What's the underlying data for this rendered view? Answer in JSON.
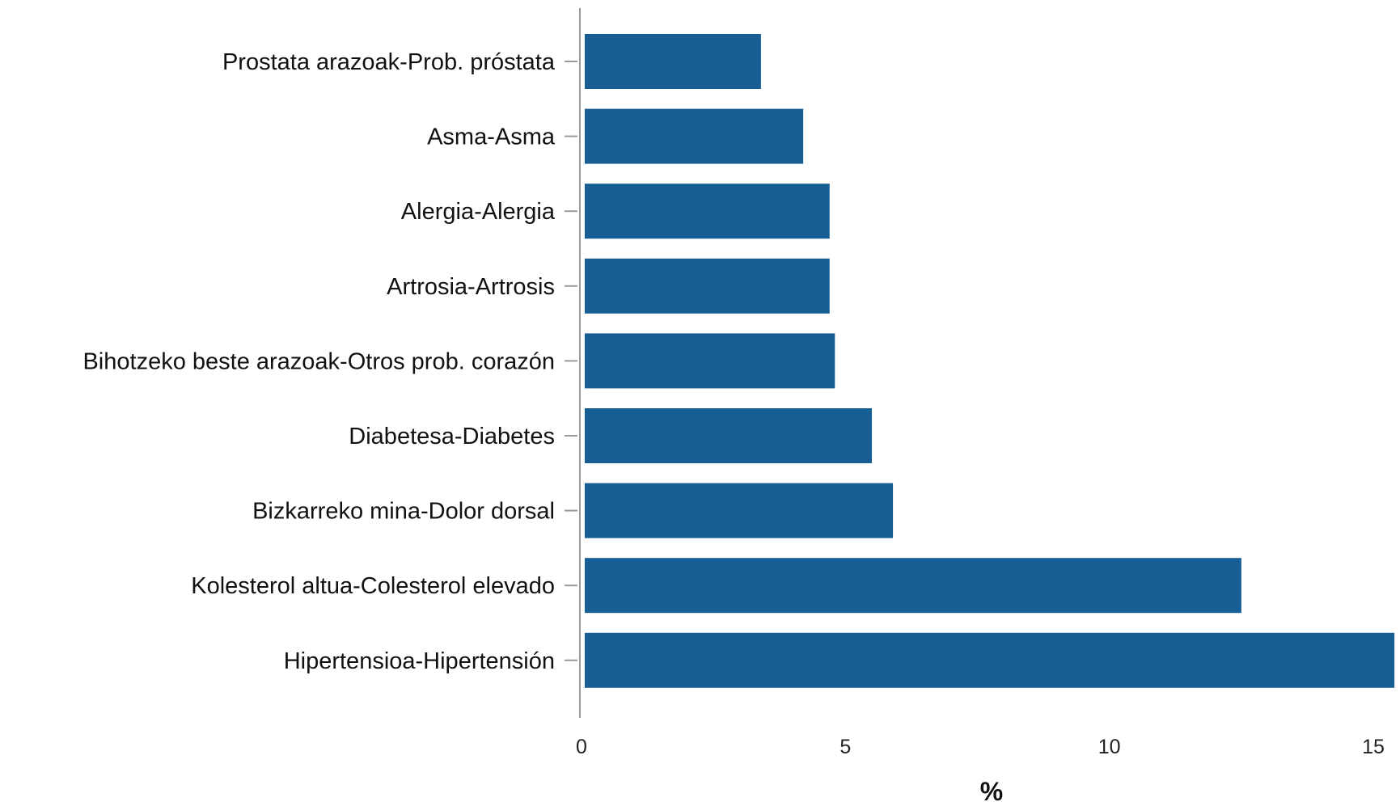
{
  "chart_data": {
    "type": "bar",
    "orientation": "horizontal",
    "categories": [
      "Prostata arazoak-Prob. próstata",
      "Asma-Asma",
      "Alergia-Alergia",
      "Artrosia-Artrosis",
      "Bihotzeko beste arazoak-Otros prob. corazón",
      "Diabetesa-Diabetes",
      "Bizkarreko mina-Dolor dorsal",
      "Kolesterol altua-Colesterol elevado",
      "Hipertensioa-Hipertensión"
    ],
    "values": [
      3.4,
      4.2,
      4.7,
      4.7,
      4.8,
      5.5,
      5.9,
      12.5,
      15.4
    ],
    "title": "",
    "xlabel": "%",
    "ylabel": "",
    "xlim": [
      0,
      15.5
    ],
    "xticks": [
      0,
      5,
      10,
      15
    ],
    "xtick_labels": [
      "0",
      "5",
      "10",
      "15"
    ],
    "grid": false,
    "legend": "none",
    "bar_color": "#175e94",
    "axis_color": "#999999"
  }
}
